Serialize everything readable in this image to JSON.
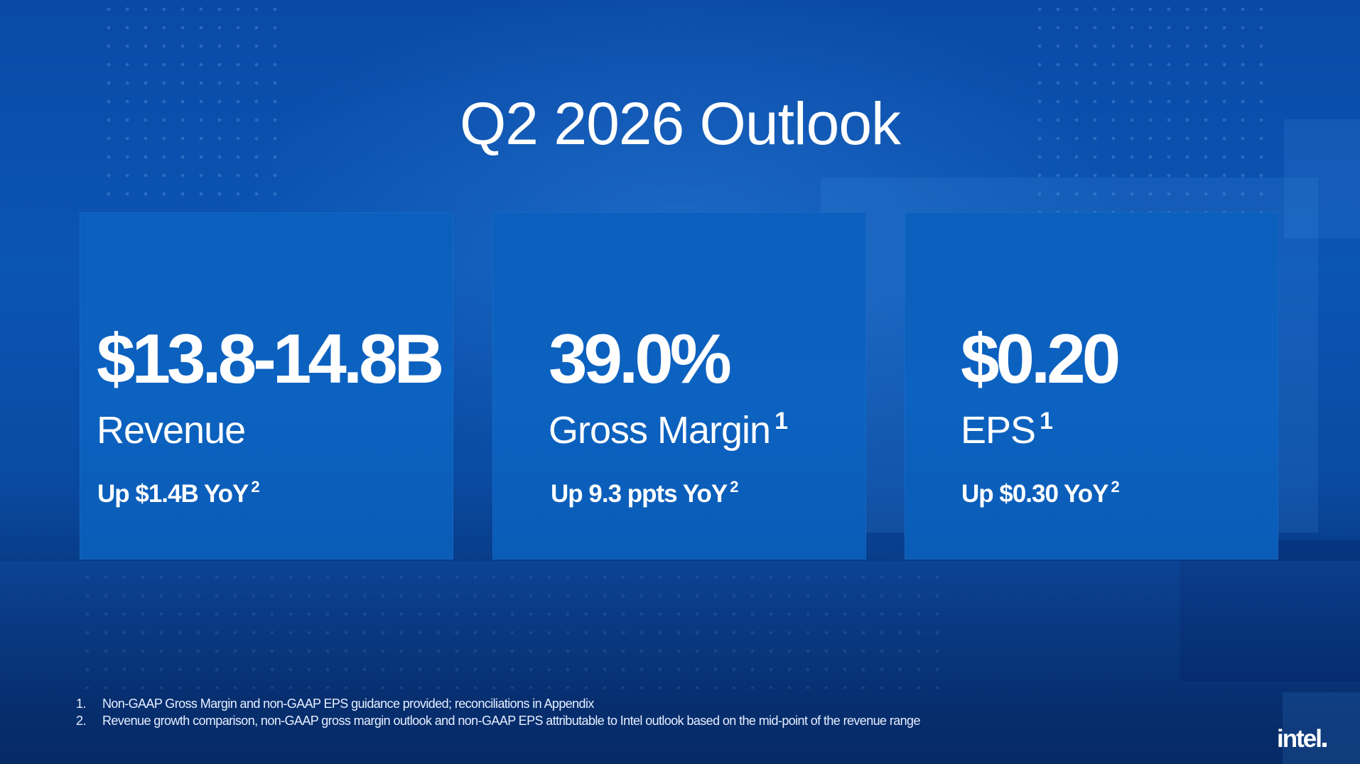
{
  "title": "Q2 2026 Outlook",
  "cards": [
    {
      "value": "$13.8-14.8B",
      "label": "Revenue",
      "label_footnote": "",
      "change": "Up $1.4B YoY",
      "change_footnote": "2"
    },
    {
      "value": "39.0%",
      "label": "Gross Margin",
      "label_footnote": "1",
      "change": "Up 9.3 ppts YoY",
      "change_footnote": "2"
    },
    {
      "value": "$0.20",
      "label": "EPS",
      "label_footnote": "1",
      "change": "Up $0.30 YoY",
      "change_footnote": "2"
    }
  ],
  "footnotes": [
    {
      "number": "1.",
      "text": "Non-GAAP Gross Margin and non-GAAP EPS guidance provided; reconciliations in Appendix"
    },
    {
      "number": "2.",
      "text": "Revenue growth comparison, non-GAAP gross margin outlook and non-GAAP EPS attributable to Intel outlook based on the mid-point of the revenue range"
    }
  ],
  "logo": "intel",
  "colors": {
    "background": "#0b55b3",
    "card": "#0c62c0",
    "text": "#ffffff"
  }
}
